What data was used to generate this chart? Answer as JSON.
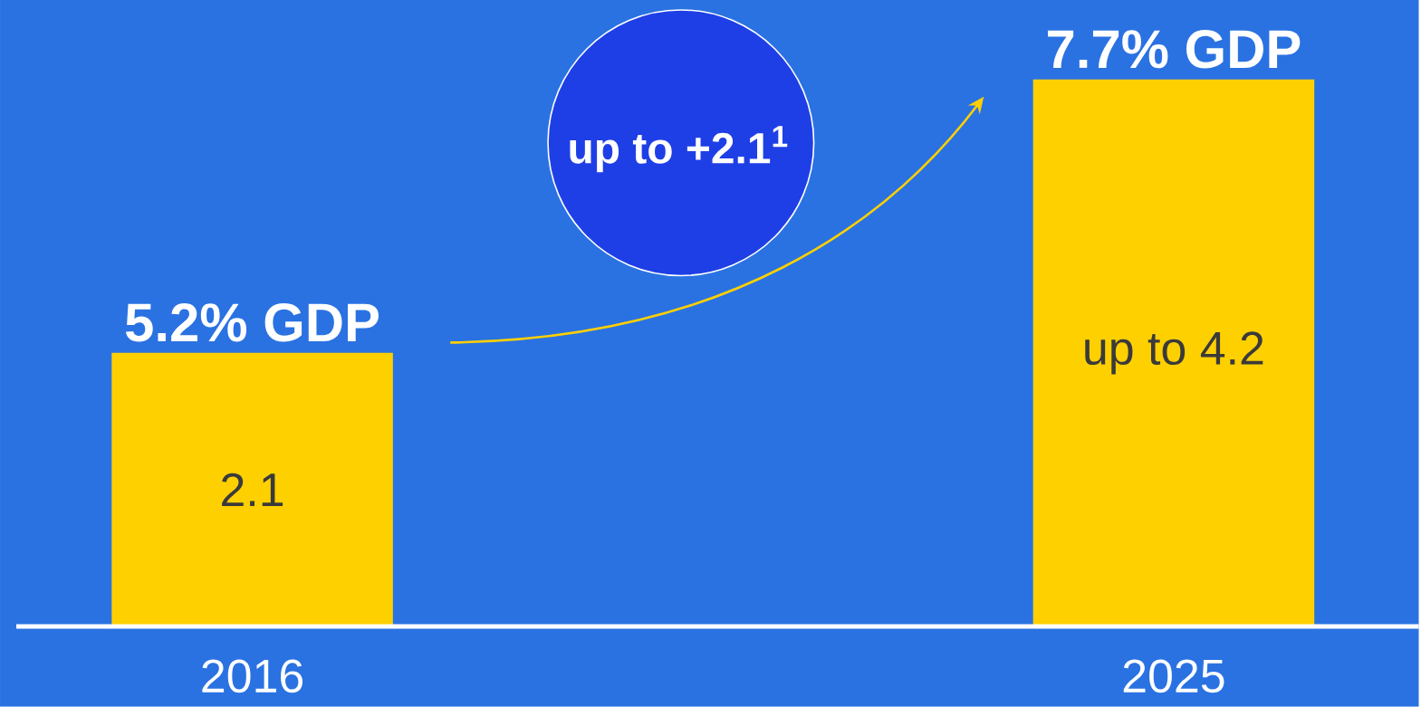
{
  "chart_data": {
    "type": "bar",
    "categories": [
      "2016",
      "2025"
    ],
    "values": [
      2.1,
      4.2
    ],
    "color": "#ffd000",
    "value_labels": [
      "2.1",
      "up to 4.2"
    ],
    "annotations": [
      {
        "text": "5.2% GDP",
        "x": "2016",
        "y": 2.1
      },
      {
        "text": "7.7% GDP",
        "x": "2025",
        "y": 4.2
      },
      "up to +2.1$^{1}$"
    ]
  }
}
